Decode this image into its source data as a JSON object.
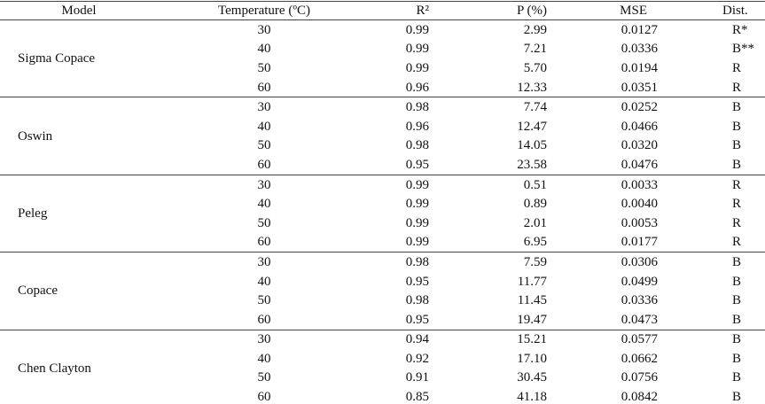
{
  "header": [
    "Model",
    "Temperature (ºC)",
    "R²",
    "P (%)",
    "MSE",
    "Dist."
  ],
  "groups": [
    {
      "model": "Sigma Copace",
      "rows": [
        [
          "30",
          "0.99",
          "2.99",
          "0.0127",
          "R*"
        ],
        [
          "40",
          "0.99",
          "7.21",
          "0.0336",
          "B**"
        ],
        [
          "50",
          "0.99",
          "5.70",
          "0.0194",
          "R"
        ],
        [
          "60",
          "0.96",
          "12.33",
          "0.0351",
          "R"
        ]
      ]
    },
    {
      "model": "Oswin",
      "rows": [
        [
          "30",
          "0.98",
          "7.74",
          "0.0252",
          "B"
        ],
        [
          "40",
          "0.96",
          "12.47",
          "0.0466",
          "B"
        ],
        [
          "50",
          "0.98",
          "14.05",
          "0.0320",
          "B"
        ],
        [
          "60",
          "0.95",
          "23.58",
          "0.0476",
          "B"
        ]
      ]
    },
    {
      "model": "Peleg",
      "rows": [
        [
          "30",
          "0.99",
          "0.51",
          "0.0033",
          "R"
        ],
        [
          "40",
          "0.99",
          "0.89",
          "0.0040",
          "R"
        ],
        [
          "50",
          "0.99",
          "2.01",
          "0.0053",
          "R"
        ],
        [
          "60",
          "0.99",
          "6.95",
          "0.0177",
          "R"
        ]
      ]
    },
    {
      "model": "Copace",
      "rows": [
        [
          "30",
          "0.98",
          "7.59",
          "0.0306",
          "B"
        ],
        [
          "40",
          "0.95",
          "11.77",
          "0.0499",
          "B"
        ],
        [
          "50",
          "0.98",
          "11.45",
          "0.0336",
          "B"
        ],
        [
          "60",
          "0.95",
          "19.47",
          "0.0473",
          "B"
        ]
      ]
    },
    {
      "model": "Chen Clayton",
      "rows": [
        [
          "30",
          "0.94",
          "15.21",
          "0.0577",
          "B"
        ],
        [
          "40",
          "0.92",
          "17.10",
          "0.0662",
          "B"
        ],
        [
          "50",
          "0.91",
          "30.45",
          "0.0756",
          "B"
        ],
        [
          "60",
          "0.85",
          "41.18",
          "0.0842",
          "B"
        ]
      ]
    }
  ]
}
